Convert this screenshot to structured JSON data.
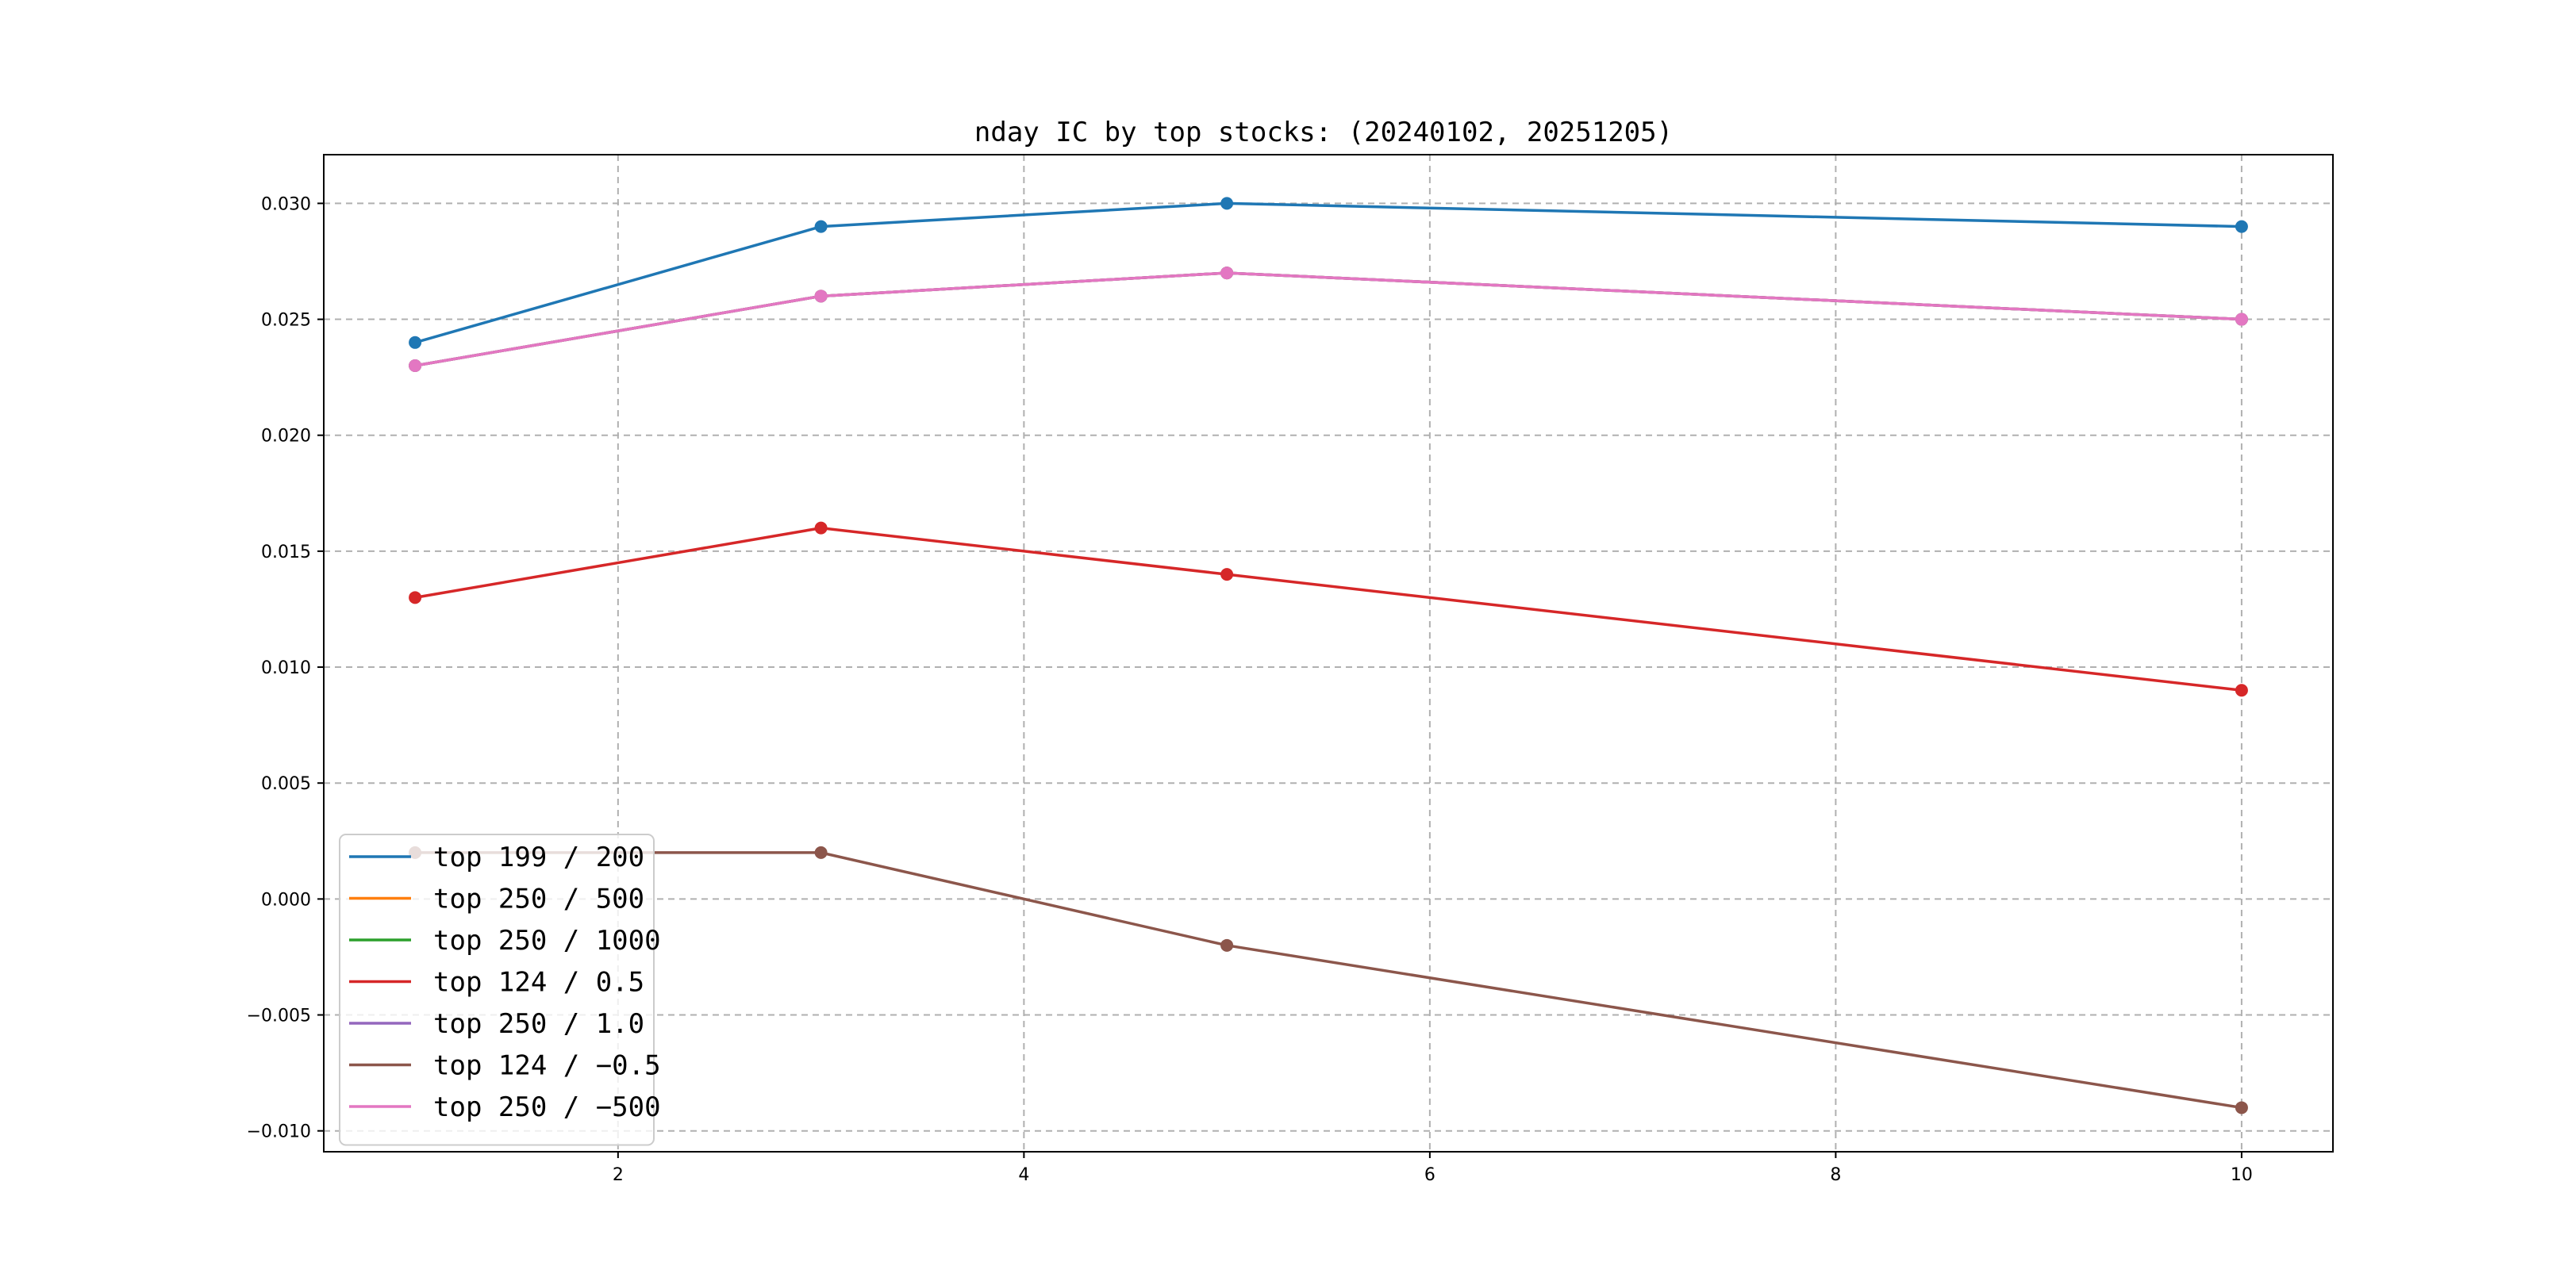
{
  "chart_data": {
    "type": "line",
    "title": "nday IC by top stocks: (20240102, 20251205)",
    "xlabel": "",
    "ylabel": "",
    "x": [
      1,
      3,
      5,
      10
    ],
    "xlim": [
      0.55,
      10.45
    ],
    "ylim": [
      -0.0109,
      0.0321
    ],
    "xticks": [
      2,
      4,
      6,
      8,
      10
    ],
    "xtick_labels": [
      "2",
      "4",
      "6",
      "8",
      "10"
    ],
    "yticks": [
      -0.01,
      -0.005,
      0.0,
      0.005,
      0.01,
      0.015,
      0.02,
      0.025,
      0.03
    ],
    "ytick_labels": [
      "−0.010",
      "−0.005",
      "0.000",
      "0.005",
      "0.010",
      "0.015",
      "0.020",
      "0.025",
      "0.030"
    ],
    "grid": true,
    "legend_position": "lower-left",
    "series": [
      {
        "name": "top 199 / 200",
        "color": "#1f77b4",
        "values": [
          0.024,
          0.029,
          0.03,
          0.029
        ]
      },
      {
        "name": "top 250 / 500",
        "color": "#ff7f0e",
        "values": [
          0.023,
          0.026,
          0.027,
          0.025
        ]
      },
      {
        "name": "top 250 / 1000",
        "color": "#2ca02c",
        "values": [
          0.023,
          0.026,
          0.027,
          0.025
        ]
      },
      {
        "name": "top 124 / 0.5",
        "color": "#d62728",
        "values": [
          0.013,
          0.016,
          0.014,
          0.009
        ]
      },
      {
        "name": "top 250 / 1.0",
        "color": "#9467bd",
        "values": [
          0.023,
          0.026,
          0.027,
          0.025
        ]
      },
      {
        "name": "top 124 / −0.5",
        "color": "#8c564b",
        "values": [
          0.002,
          0.002,
          -0.002,
          -0.009
        ]
      },
      {
        "name": "top 250 / −500",
        "color": "#e377c2",
        "values": [
          0.023,
          0.026,
          0.027,
          0.025
        ]
      }
    ]
  }
}
